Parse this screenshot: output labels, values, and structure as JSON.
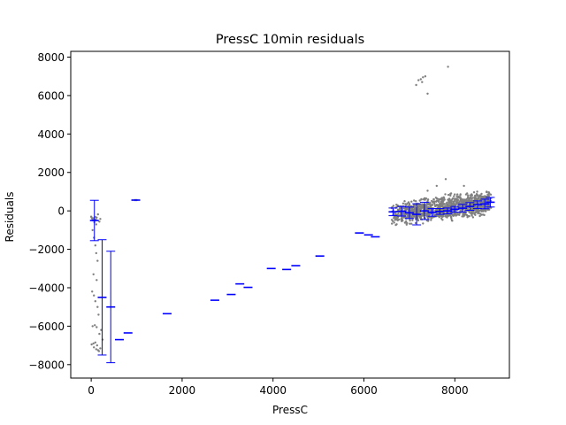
{
  "chart_data": {
    "type": "scatter",
    "title": "PressC 10min residuals",
    "xlabel": "PressC",
    "ylabel": "Residuals",
    "xlim": [
      -450,
      9200
    ],
    "ylim": [
      -8700,
      8300
    ],
    "xticks": [
      0,
      2000,
      4000,
      6000,
      8000
    ],
    "yticks": [
      -8000,
      -6000,
      -4000,
      -2000,
      0,
      2000,
      4000,
      6000,
      8000
    ],
    "grid": false,
    "scatter_color": "#808080",
    "errorbar_color": "#0000ff",
    "scatter_points": [
      [
        0,
        -300
      ],
      [
        10,
        -350
      ],
      [
        20,
        -400
      ],
      [
        30,
        -450
      ],
      [
        40,
        -500
      ],
      [
        50,
        -380
      ],
      [
        60,
        -420
      ],
      [
        70,
        -600
      ],
      [
        80,
        -520
      ],
      [
        90,
        -320
      ],
      [
        100,
        -450
      ],
      [
        110,
        -700
      ],
      [
        120,
        -350
      ],
      [
        150,
        -180
      ],
      [
        180,
        -560
      ],
      [
        200,
        -420
      ],
      [
        30,
        -1000
      ],
      [
        60,
        -1400
      ],
      [
        90,
        -1800
      ],
      [
        110,
        -2200
      ],
      [
        140,
        -2600
      ],
      [
        50,
        -3300
      ],
      [
        120,
        -3600
      ],
      [
        20,
        -4200
      ],
      [
        60,
        -4400
      ],
      [
        90,
        -4700
      ],
      [
        140,
        -5000
      ],
      [
        160,
        -5400
      ],
      [
        30,
        -6000
      ],
      [
        80,
        -5950
      ],
      [
        120,
        -6050
      ],
      [
        10,
        -6950
      ],
      [
        50,
        -6900
      ],
      [
        90,
        -6850
      ],
      [
        130,
        -7000
      ],
      [
        60,
        -7100
      ],
      [
        110,
        -7200
      ],
      [
        150,
        -7250
      ],
      [
        170,
        -7300
      ],
      [
        200,
        -7150
      ],
      [
        250,
        -6700
      ],
      [
        180,
        -6400
      ],
      [
        220,
        -6200
      ],
      [
        960,
        560
      ],
      [
        980,
        560
      ],
      [
        1000,
        560
      ],
      [
        7150,
        6550
      ],
      [
        7200,
        6800
      ],
      [
        7250,
        6850
      ],
      [
        7300,
        6950
      ],
      [
        7350,
        7000
      ],
      [
        7280,
        6700
      ],
      [
        7400,
        6100
      ],
      [
        7850,
        7500
      ],
      [
        7800,
        1650
      ],
      [
        7600,
        1300
      ],
      [
        7400,
        1050
      ],
      [
        8200,
        1300
      ],
      [
        8700,
        1000
      ]
    ],
    "cloud": {
      "x_range": [
        6600,
        8800
      ],
      "y_at_start": -200,
      "y_at_end": 450,
      "spread": 550,
      "count": 1300
    },
    "errorbars": [
      {
        "x": 70,
        "y": -500,
        "err": 1050
      },
      {
        "x": 240,
        "y": -4500,
        "err": 3000
      },
      {
        "x": 430,
        "y": -5000,
        "err": 2900
      },
      {
        "x": 620,
        "y": -6700,
        "err": 0
      },
      {
        "x": 810,
        "y": -6350,
        "err": 0
      },
      {
        "x": 980,
        "y": 560,
        "err": 0
      },
      {
        "x": 1670,
        "y": -5350,
        "err": 0
      },
      {
        "x": 2720,
        "y": -4650,
        "err": 0
      },
      {
        "x": 3080,
        "y": -4350,
        "err": 0
      },
      {
        "x": 3270,
        "y": -3800,
        "err": 0
      },
      {
        "x": 3450,
        "y": -3980,
        "err": 0
      },
      {
        "x": 3960,
        "y": -3000,
        "err": 0
      },
      {
        "x": 4300,
        "y": -3050,
        "err": 0
      },
      {
        "x": 4500,
        "y": -2850,
        "err": 0
      },
      {
        "x": 5030,
        "y": -2350,
        "err": 0
      },
      {
        "x": 5900,
        "y": -1150,
        "err": 0
      },
      {
        "x": 6100,
        "y": -1250,
        "err": 0
      },
      {
        "x": 6250,
        "y": -1350,
        "err": 0
      },
      {
        "x": 6640,
        "y": -50,
        "err": 200
      },
      {
        "x": 6830,
        "y": -20,
        "err": 250
      },
      {
        "x": 7000,
        "y": -100,
        "err": 300
      },
      {
        "x": 7160,
        "y": -180,
        "err": 550
      },
      {
        "x": 7330,
        "y": 0,
        "err": 450
      },
      {
        "x": 7500,
        "y": -80,
        "err": 200
      },
      {
        "x": 7670,
        "y": -30,
        "err": 150
      },
      {
        "x": 7840,
        "y": 0,
        "err": 150
      },
      {
        "x": 8000,
        "y": 80,
        "err": 150
      },
      {
        "x": 8170,
        "y": 140,
        "err": 200
      },
      {
        "x": 8330,
        "y": 230,
        "err": 200
      },
      {
        "x": 8500,
        "y": 320,
        "err": 200
      },
      {
        "x": 8660,
        "y": 360,
        "err": 250
      },
      {
        "x": 8780,
        "y": 450,
        "err": 250
      }
    ]
  }
}
